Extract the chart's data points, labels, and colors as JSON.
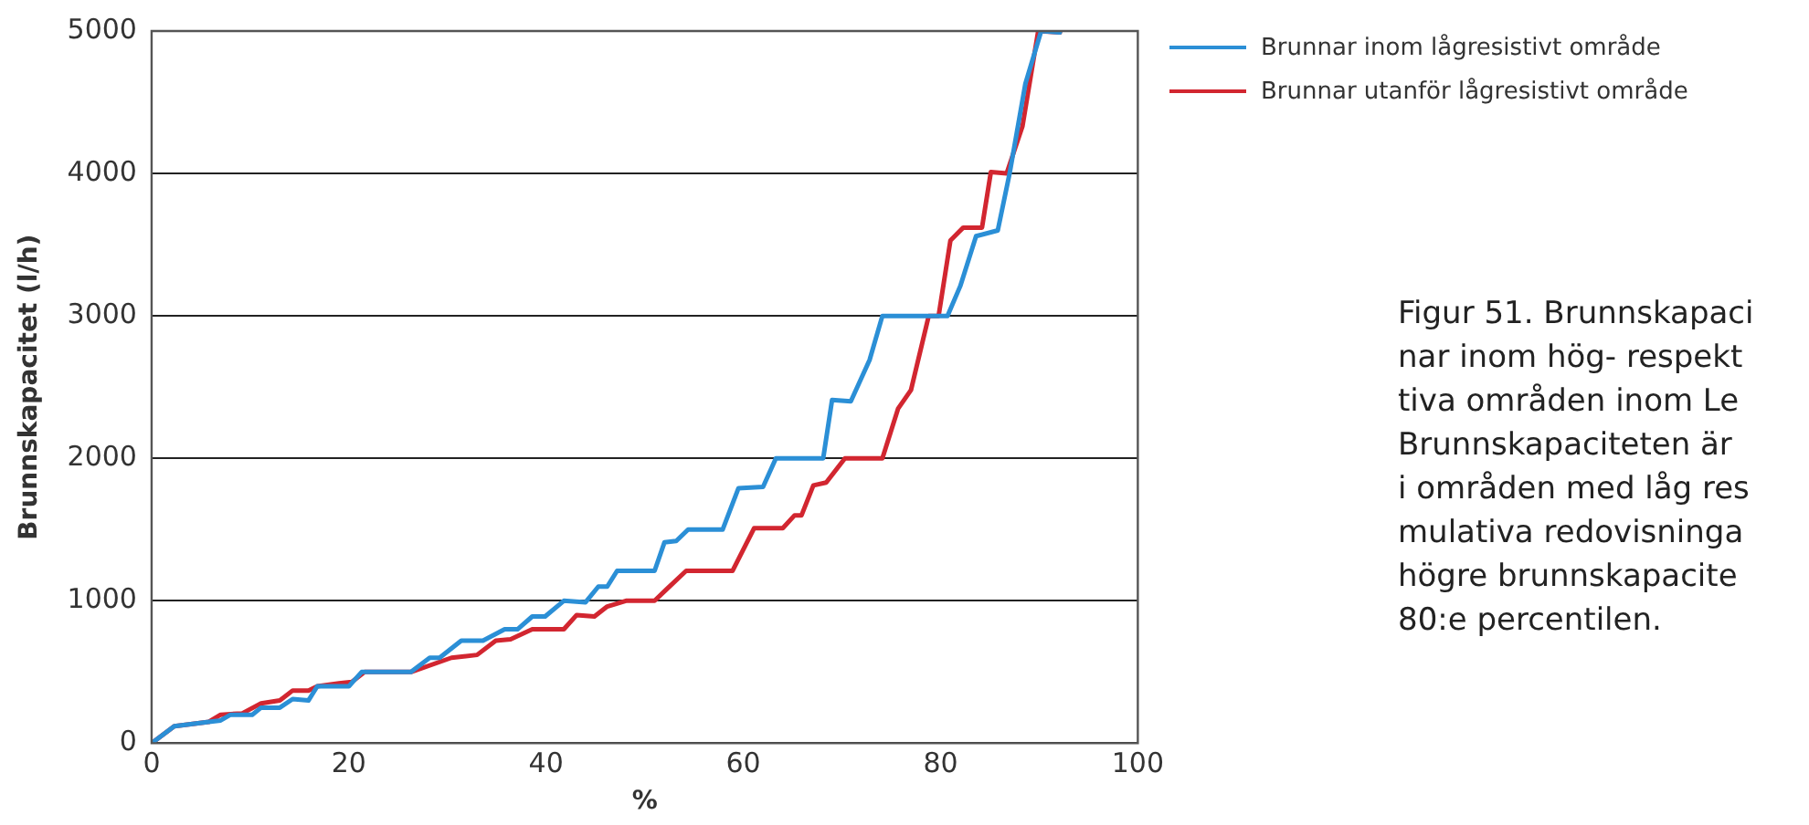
{
  "chart_data": {
    "type": "line",
    "xlabel": "%",
    "ylabel": "Brunnskapacitet (l/h)",
    "xlim": [
      0,
      100
    ],
    "xticks": [
      0,
      20,
      40,
      60,
      80,
      100
    ],
    "ylim": [
      0,
      5000
    ],
    "yticks": [
      0,
      1000,
      2000,
      3000,
      4000,
      5000
    ],
    "grid": "y",
    "legend": "top right",
    "marker": "none",
    "line_style": "solid",
    "series": [
      {
        "name": "Brunnar inom lågresistivt område",
        "color": "#2b8fd6",
        "x": [
          0,
          2.3,
          5.8,
          7.0,
          8.0,
          10.2,
          11.1,
          13.0,
          14.3,
          15.9,
          16.8,
          20.0,
          21.3,
          26.3,
          28.2,
          29.2,
          31.4,
          33.6,
          35.8,
          37.1,
          38.6,
          39.9,
          41.8,
          44.0,
          45.3,
          46.2,
          47.2,
          51.0,
          52.0,
          53.2,
          54.4,
          57.9,
          59.5,
          62.0,
          63.3,
          68.1,
          69.0,
          70.9,
          72.8,
          74.1,
          80.7,
          82.0,
          83.6,
          85.8,
          87.0,
          88.6,
          90.2,
          92.1
        ],
        "values": [
          0,
          120,
          150,
          160,
          200,
          200,
          250,
          250,
          310,
          300,
          400,
          400,
          500,
          500,
          600,
          600,
          720,
          720,
          800,
          800,
          890,
          890,
          1000,
          990,
          1100,
          1100,
          1210,
          1210,
          1410,
          1420,
          1500,
          1500,
          1790,
          1800,
          2000,
          2000,
          2410,
          2400,
          2690,
          3000,
          3000,
          3210,
          3560,
          3600,
          4000,
          4630,
          5000,
          4990
        ]
      },
      {
        "name": "Brunnar utanför lågresistivt område",
        "color": "#d22630",
        "x": [
          0,
          2.3,
          5.8,
          7.0,
          9.2,
          11.1,
          13.0,
          14.3,
          15.9,
          16.8,
          19.0,
          20.3,
          21.6,
          26.3,
          30.4,
          33.0,
          34.9,
          36.4,
          38.6,
          41.8,
          43.1,
          44.9,
          46.2,
          48.1,
          51.0,
          52.2,
          54.2,
          58.9,
          61.1,
          64.0,
          65.2,
          65.9,
          67.1,
          68.4,
          70.3,
          74.1,
          75.7,
          77.0,
          78.8,
          79.8,
          81.0,
          82.3,
          84.2,
          85.1,
          86.7,
          88.3,
          89.9,
          92.1
        ],
        "values": [
          0,
          120,
          150,
          200,
          210,
          280,
          300,
          370,
          370,
          400,
          420,
          430,
          500,
          500,
          600,
          620,
          720,
          730,
          800,
          800,
          900,
          890,
          960,
          1000,
          1000,
          1080,
          1210,
          1210,
          1510,
          1510,
          1600,
          1600,
          1810,
          1830,
          2000,
          2000,
          2350,
          2480,
          3000,
          3000,
          3530,
          3620,
          3620,
          4010,
          4000,
          4330,
          5000,
          4990
        ]
      }
    ],
    "annotations": [
      "Figur 51. Brunnskapaci",
      "nar inom hög- respekt",
      "tiva områden inom Le",
      "Brunnskapaciteten är",
      "i områden med låg res",
      "mulativa redovisninga",
      "högre brunnskapacite",
      "80:e percentilen."
    ]
  }
}
